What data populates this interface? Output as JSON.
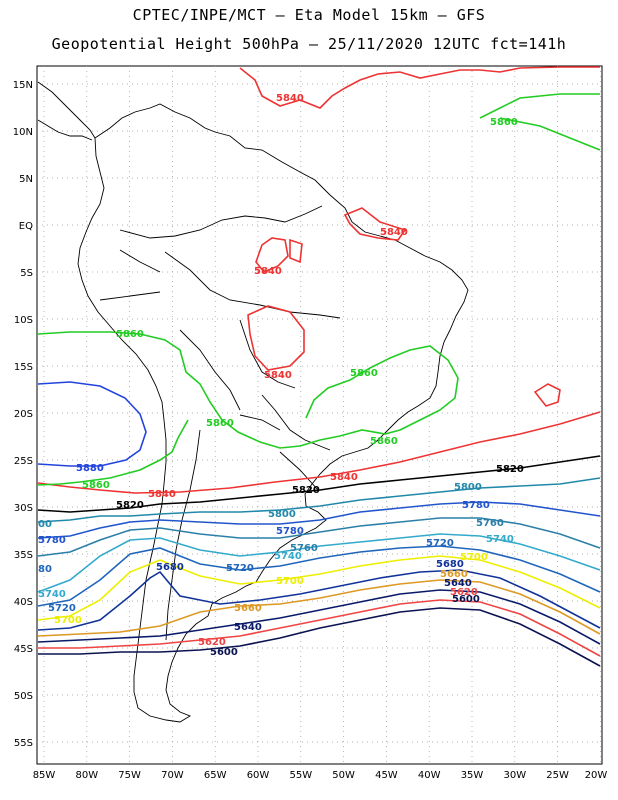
{
  "header": {
    "line1": "CPTEC/INPE/MCT –  Eta Model 15km – GFS",
    "line2": "Geopotential Height 500hPa – 25/11/2020 12UTC fct=141h"
  },
  "lat_labels": [
    "15N",
    "10N",
    "5N",
    "EQ",
    "5S",
    "10S",
    "15S",
    "20S",
    "25S",
    "30S",
    "35S",
    "40S",
    "45S",
    "50S",
    "55S"
  ],
  "lon_labels": [
    "85W",
    "80W",
    "75W",
    "70W",
    "65W",
    "60W",
    "55W",
    "50W",
    "45W",
    "40W",
    "35W",
    "30W",
    "25W",
    "20W"
  ],
  "contour_labels": {
    "c5880": "5880",
    "c5860": "5860",
    "c5840": "5840",
    "c5820": "5820",
    "c5800": "5800",
    "c5780": "5780",
    "c5760": "5760",
    "c5740": "5740",
    "c5720": "5720",
    "c5700": "5700",
    "c5680": "5680",
    "c5660": "5660",
    "c5640": "5640",
    "c5620": "5620",
    "c5600": "5600",
    "c00": "00",
    "c80": "80"
  },
  "colors": {
    "c5880": "#2244dd",
    "c5860": "#22cc22",
    "c5840": "#ee3333",
    "c5820": "#000000",
    "c5800": "#2288aa",
    "c5780": "#2255cc",
    "c5760": "#2a7fa8",
    "c5740": "#33aacc",
    "c5720": "#1f66bb",
    "c5700": "#eeee00",
    "c5680": "#113399",
    "c5660": "#dd9922",
    "c5640": "#0a1a6a",
    "c5620": "#ee4444",
    "c5600": "#0a1250"
  }
}
